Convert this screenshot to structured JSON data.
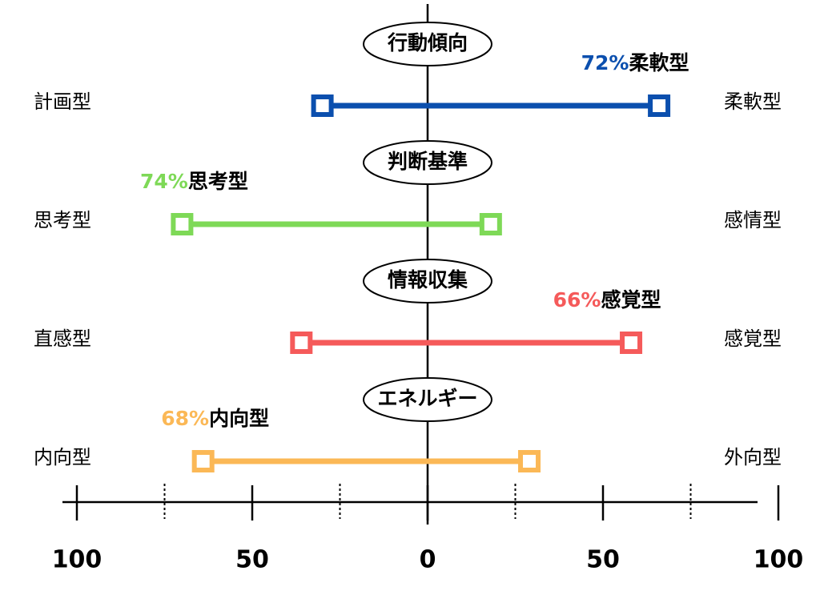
{
  "chart_data": {
    "type": "range",
    "series": [
      {
        "name": "行動傾向",
        "left_label": "計画型",
        "right_label": "柔軟型",
        "color": "#0b4fae",
        "values": [
          -30,
          66
        ],
        "annotation_label": "72%",
        "annotation_type": "柔軟型",
        "annotation_side": "right"
      },
      {
        "name": "判断基準",
        "left_label": "思考型",
        "right_label": "感情型",
        "color": "#7ed957",
        "values": [
          -70,
          18
        ],
        "annotation_label": "74%",
        "annotation_type": "思考型",
        "annotation_side": "left"
      },
      {
        "name": "情報収集",
        "left_label": "直感型",
        "right_label": "感覚型",
        "color": "#f55a5a",
        "values": [
          -36,
          58
        ],
        "annotation_label": "66%",
        "annotation_type": "感覚型",
        "annotation_side": "right"
      },
      {
        "name": "エネルギー",
        "left_label": "内向型",
        "right_label": "外向型",
        "color": "#fbb856",
        "values": [
          -64,
          29
        ],
        "annotation_label": "68%",
        "annotation_type": "内向型",
        "annotation_side": "left"
      }
    ],
    "xlim": [
      -100,
      100
    ],
    "xticks": [
      {
        "value": -100,
        "label": "100"
      },
      {
        "value": -50,
        "label": "50"
      },
      0,
      50,
      100
    ],
    "xminorticks": [
      -75,
      -25,
      25,
      75
    ]
  }
}
